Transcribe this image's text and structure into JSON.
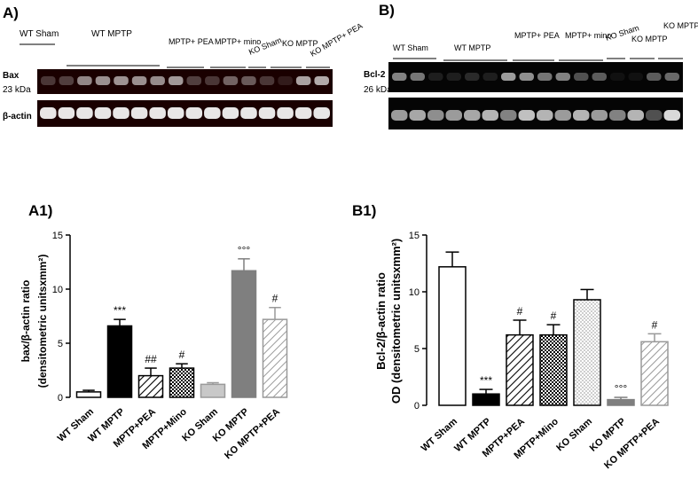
{
  "panel_labels": {
    "a": "A)",
    "b": "B)",
    "a1": "A1)",
    "b1": "B1)"
  },
  "blot_a": {
    "groups": [
      "WT Sham",
      "WT MPTP",
      "MPTP+ PEA",
      "MPTP+ mino",
      "KO Sham",
      "KO MPTP",
      "KO MPTP+ PEA"
    ],
    "row_labels": [
      "Bax",
      "23 kDa",
      "β-actin"
    ]
  },
  "blot_b": {
    "groups": [
      "WT Sham",
      "WT MPTP",
      "MPTP+ PEA",
      "MPTP+ mino",
      "KO Sham",
      "KO MPTP",
      "KO MPTP+ PEA"
    ],
    "row_labels": [
      "Bcl-2",
      "26 kDa"
    ]
  },
  "chart_data": [
    {
      "type": "bar",
      "title": "",
      "ylabel": "bax/β-actin ratio (densitometric unitsxmm²)",
      "ylabel_line1": "bax/β-actin ratio",
      "ylabel_line2": "(densitometric unitsxmm²)",
      "xlabel": "",
      "ylim": [
        0,
        15
      ],
      "yticks": [
        0,
        5,
        10,
        15
      ],
      "categories": [
        "WT Sham",
        "WT MPTP",
        "MPTP+PEA",
        "MPTP+Mino",
        "KO Sham",
        "KO MPTP",
        "KO MPTP+PEA"
      ],
      "values": [
        0.5,
        6.6,
        2.0,
        2.7,
        1.2,
        11.7,
        7.2
      ],
      "errors": [
        0.15,
        0.6,
        0.7,
        0.4,
        0.15,
        1.1,
        1.1
      ],
      "annotations": [
        "",
        "***",
        "##",
        "#",
        "",
        "°°°",
        "#"
      ],
      "fills": [
        "white",
        "black",
        "hatch",
        "checker",
        "lightgray",
        "gray",
        "lighthatch"
      ],
      "grid": false
    },
    {
      "type": "bar",
      "title": "",
      "ylabel": "OD (densitometric unitsxmm²) Bcl-2/β-actin ratio",
      "ylabel_line1": "Bcl-2/β-actin ratio",
      "ylabel_line2": "OD (densitometric unitsxmm²)",
      "xlabel": "",
      "ylim": [
        0,
        15
      ],
      "yticks": [
        0,
        5,
        10,
        15
      ],
      "categories": [
        "WT Sham",
        "WT MPTP",
        "MPTP+PEA",
        "MPTP+Mino",
        "KO Sham",
        "KO MPTP",
        "KO MPTP+PEA"
      ],
      "values": [
        12.2,
        1.0,
        6.2,
        6.2,
        9.3,
        0.5,
        5.6
      ],
      "errors": [
        1.3,
        0.4,
        1.3,
        0.9,
        0.9,
        0.2,
        0.7
      ],
      "annotations": [
        "",
        "***",
        "#",
        "#",
        "",
        "°°°",
        "#"
      ],
      "fills": [
        "white",
        "black",
        "hatch",
        "checker",
        "dotted",
        "gray",
        "lighthatch"
      ],
      "grid": false
    }
  ]
}
